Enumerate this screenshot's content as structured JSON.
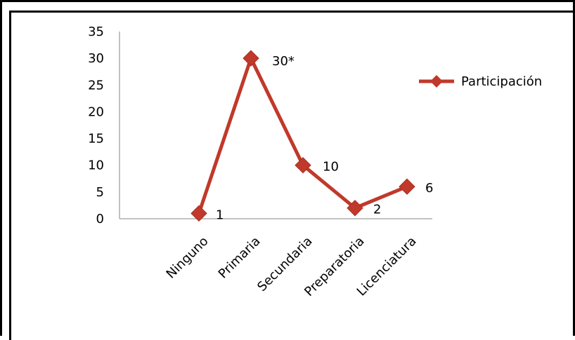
{
  "chart_data": {
    "type": "line",
    "categories": [
      "Ninguno",
      "Primaria",
      "Secundaria",
      "Preparatoria",
      "Licenciatura"
    ],
    "series": [
      {
        "name": "Participación",
        "values": [
          1,
          30,
          10,
          2,
          6
        ],
        "color": "#c0392b"
      }
    ],
    "data_labels": [
      "1",
      "30*",
      "10",
      "2",
      "6"
    ],
    "yticks": [
      "0",
      "5",
      "10",
      "15",
      "20",
      "25",
      "30",
      "35"
    ],
    "ylim": [
      0,
      35
    ],
    "grid": false,
    "legend_position": "right",
    "marker": "diamond"
  }
}
